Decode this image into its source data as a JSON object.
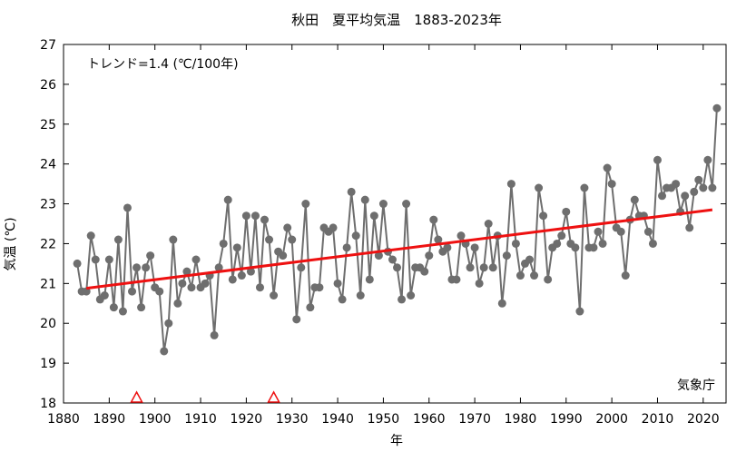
{
  "chart_data": {
    "type": "line",
    "title": "秋田　夏平均気温　1883-2023年",
    "xlabel": "年",
    "ylabel": "気温 (℃)",
    "xlim": [
      1880,
      2025
    ],
    "ylim": [
      18,
      27
    ],
    "x_ticks": [
      1880,
      1890,
      1900,
      1910,
      1920,
      1930,
      1940,
      1950,
      1960,
      1970,
      1980,
      1990,
      2000,
      2010,
      2020
    ],
    "y_ticks": [
      18,
      19,
      20,
      21,
      22,
      23,
      24,
      25,
      26,
      27
    ],
    "grid": false,
    "trend_label": "トレンド=1.4 (℃/100年)",
    "source_label": "気象庁",
    "colors": {
      "series": "#6e6e6e",
      "trend": "#ee1111",
      "marker": "#ee1111"
    },
    "series": [
      {
        "x": [
          1883,
          1884,
          1885,
          1886,
          1887,
          1888,
          1889,
          1890,
          1891,
          1892,
          1893,
          1894,
          1895,
          1896,
          1897,
          1898,
          1899,
          1900,
          1901,
          1902,
          1903,
          1904,
          1905,
          1906,
          1907,
          1908,
          1909,
          1910,
          1911,
          1912,
          1913,
          1914,
          1915,
          1916,
          1917,
          1918,
          1919,
          1920,
          1921,
          1922,
          1923,
          1924,
          1925,
          1926,
          1927,
          1928,
          1929,
          1930,
          1931,
          1932,
          1933,
          1934,
          1935,
          1936,
          1937,
          1938,
          1939,
          1940,
          1941,
          1942,
          1943,
          1944,
          1945,
          1946,
          1947,
          1948,
          1949,
          1950,
          1951,
          1952,
          1953,
          1954,
          1955,
          1956,
          1957,
          1958,
          1959,
          1960,
          1961,
          1962,
          1963,
          1964,
          1965,
          1966,
          1967,
          1968,
          1969,
          1970,
          1971,
          1972,
          1973,
          1974,
          1975,
          1976,
          1977,
          1978,
          1979,
          1980,
          1981,
          1982,
          1983,
          1984,
          1985,
          1986,
          1987,
          1988,
          1989,
          1990,
          1991,
          1992,
          1993,
          1994,
          1995,
          1996,
          1997,
          1998,
          1999,
          2000,
          2001,
          2002,
          2003,
          2004,
          2005,
          2006,
          2007,
          2008,
          2009,
          2010,
          2011,
          2012,
          2013,
          2014,
          2015,
          2016,
          2017,
          2018,
          2019,
          2020,
          2021,
          2022,
          2023
        ],
        "values": [
          21.5,
          20.8,
          20.8,
          22.2,
          21.6,
          20.6,
          20.7,
          21.6,
          20.4,
          22.1,
          20.3,
          22.9,
          20.8,
          21.4,
          20.4,
          21.4,
          21.7,
          20.9,
          20.8,
          19.3,
          20.0,
          22.1,
          20.5,
          21.0,
          21.3,
          20.9,
          21.6,
          20.9,
          21.0,
          21.2,
          19.7,
          21.4,
          22.0,
          23.1,
          21.1,
          21.9,
          21.2,
          22.7,
          21.3,
          22.7,
          20.9,
          22.6,
          22.1,
          20.7,
          21.8,
          21.7,
          22.4,
          22.1,
          20.1,
          21.4,
          23.0,
          20.4,
          20.9,
          20.9,
          22.4,
          22.3,
          22.4,
          21.0,
          20.6,
          21.9,
          23.3,
          22.2,
          20.7,
          23.1,
          21.1,
          22.7,
          21.7,
          23.0,
          21.8,
          21.6,
          21.4,
          20.6,
          23.0,
          20.7,
          21.4,
          21.4,
          21.3,
          21.7,
          22.6,
          22.1,
          21.8,
          21.9,
          21.1,
          21.1,
          22.2,
          22.0,
          21.4,
          21.9,
          21.0,
          21.4,
          22.5,
          21.4,
          22.2,
          20.5,
          21.7,
          23.5,
          22.0,
          21.2,
          21.5,
          21.6,
          21.2,
          23.4,
          22.7,
          21.1,
          21.9,
          22.0,
          22.2,
          22.8,
          22.0,
          21.9,
          20.3,
          23.4,
          21.9,
          21.9,
          22.3,
          22.0,
          23.9,
          23.5,
          22.4,
          22.3,
          21.2,
          22.6,
          23.1,
          22.7,
          22.7,
          22.3,
          22.0,
          24.1,
          23.2,
          23.4,
          23.4,
          23.5,
          22.8,
          23.2,
          22.4,
          23.3,
          23.6,
          23.4,
          24.1,
          23.4,
          25.4
        ]
      }
    ],
    "trend": {
      "x": [
        1885,
        2022
      ],
      "values": [
        20.88,
        22.85
      ]
    },
    "markers": {
      "type": "triangle",
      "x": [
        1896,
        1926
      ],
      "y": 18
    }
  }
}
